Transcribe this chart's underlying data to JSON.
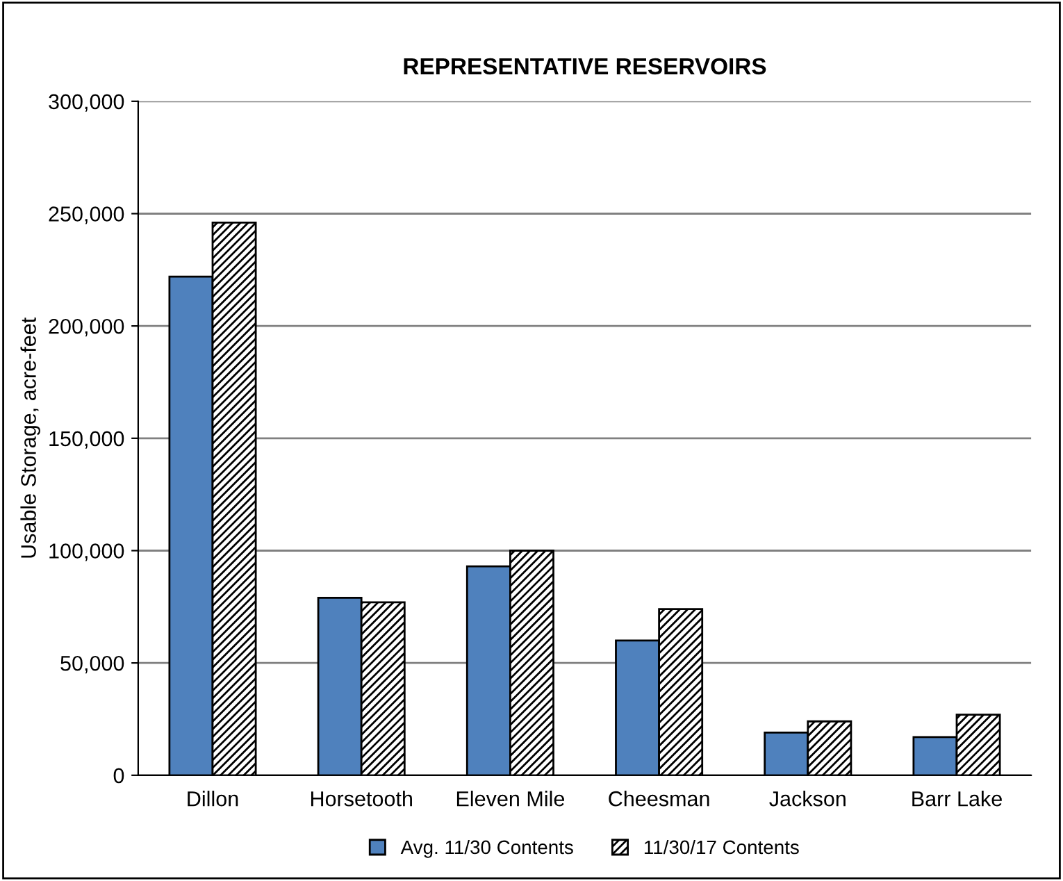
{
  "chart_data": {
    "type": "bar",
    "title": "REPRESENTATIVE RESERVOIRS",
    "ylabel": "Usable Storage, acre-feet",
    "categories": [
      "Dillon",
      "Horsetooth",
      "Eleven Mile",
      "Cheesman",
      "Jackson",
      "Barr Lake"
    ],
    "series": [
      {
        "name": "Avg. 11/30 Contents",
        "color": "#4f81bd",
        "values": [
          222000,
          79000,
          93000,
          60000,
          19000,
          17000
        ]
      },
      {
        "name": "11/30/17 Contents",
        "color": "#000000",
        "values": [
          246000,
          77000,
          100000,
          74000,
          24000,
          27000
        ]
      }
    ],
    "ylim": [
      0,
      300000
    ],
    "yticks": [
      {
        "value": 0,
        "label": "0"
      },
      {
        "value": 50000,
        "label": "50,000"
      },
      {
        "value": 100000,
        "label": "100,000"
      },
      {
        "value": 150000,
        "label": "150,000"
      },
      {
        "value": 200000,
        "label": "200,000"
      },
      {
        "value": 250000,
        "label": "250,000"
      },
      {
        "value": 300000,
        "label": "300,000"
      }
    ],
    "grid": "y",
    "legend": "bottom"
  }
}
